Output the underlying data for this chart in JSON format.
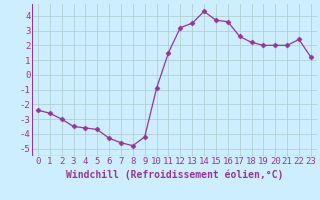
{
  "x": [
    0,
    1,
    2,
    3,
    4,
    5,
    6,
    7,
    8,
    9,
    10,
    11,
    12,
    13,
    14,
    15,
    16,
    17,
    18,
    19,
    20,
    21,
    22,
    23
  ],
  "y": [
    -2.4,
    -2.6,
    -3.0,
    -3.5,
    -3.6,
    -3.7,
    -4.3,
    -4.6,
    -4.8,
    -4.2,
    -0.9,
    1.5,
    3.2,
    3.5,
    4.3,
    3.7,
    3.6,
    2.6,
    2.2,
    2.0,
    2.0,
    2.0,
    2.4,
    1.2
  ],
  "line_color": "#993399",
  "marker": "D",
  "marker_size": 2.5,
  "bg_color": "#cceeff",
  "grid_color": "#aacccc",
  "xlabel": "Windchill (Refroidissement éolien,°C)",
  "xlabel_color": "#993399",
  "xlabel_fontsize": 7,
  "tick_color": "#993399",
  "tick_fontsize": 6.5,
  "xlim": [
    -0.5,
    23.5
  ],
  "ylim": [
    -5.5,
    4.8
  ],
  "yticks": [
    -5,
    -4,
    -3,
    -2,
    -1,
    0,
    1,
    2,
    3,
    4
  ],
  "xticks": [
    0,
    1,
    2,
    3,
    4,
    5,
    6,
    7,
    8,
    9,
    10,
    11,
    12,
    13,
    14,
    15,
    16,
    17,
    18,
    19,
    20,
    21,
    22,
    23
  ]
}
